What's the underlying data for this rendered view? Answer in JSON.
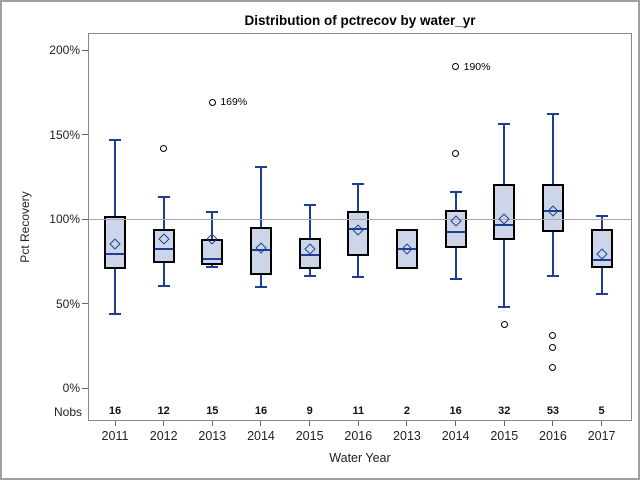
{
  "chart_data": {
    "type": "box",
    "title": "Distribution of pctrecov by water_yr",
    "xlabel": "Water Year",
    "ylabel": "Pct Recovery",
    "nobs_label": "Nobs",
    "ylim_pct": [
      0,
      200
    ],
    "yticks": [
      {
        "value": 0,
        "label": "0%"
      },
      {
        "value": 50,
        "label": "50%"
      },
      {
        "value": 100,
        "label": "100%"
      },
      {
        "value": 150,
        "label": "150%"
      },
      {
        "value": 200,
        "label": "200%"
      }
    ],
    "reference_line_pct": 100,
    "legend": "none",
    "grid": "off",
    "groups": [
      {
        "year": "2011",
        "nobs": "16",
        "whisker_low": 44,
        "q1": 70.5,
        "median": 79,
        "q3": 102,
        "whisker_high": 147,
        "mean": 85,
        "outliers": []
      },
      {
        "year": "2012",
        "nobs": "12",
        "whisker_low": 60.5,
        "q1": 74,
        "median": 82,
        "q3": 94,
        "whisker_high": 113,
        "mean": 88,
        "outliers": [
          {
            "value": 142,
            "label": ""
          }
        ]
      },
      {
        "year": "2013",
        "nobs": "15",
        "whisker_low": 71.5,
        "q1": 73,
        "median": 76.5,
        "q3": 88,
        "whisker_high": 104,
        "mean": 88,
        "outliers": [
          {
            "value": 169,
            "label": "169%"
          }
        ]
      },
      {
        "year": "2014",
        "nobs": "16",
        "whisker_low": 60,
        "q1": 67,
        "median": 81.5,
        "q3": 95,
        "whisker_high": 131,
        "mean": 83,
        "outliers": []
      },
      {
        "year": "2015",
        "nobs": "9",
        "whisker_low": 66,
        "q1": 70.5,
        "median": 78.5,
        "q3": 88.5,
        "whisker_high": 108.5,
        "mean": 82,
        "outliers": []
      },
      {
        "year": "2016",
        "nobs": "11",
        "whisker_low": 65.5,
        "q1": 78,
        "median": 94,
        "q3": 104.5,
        "whisker_high": 121,
        "mean": 93.5,
        "outliers": []
      },
      {
        "year": "2013",
        "nobs": "2",
        "whisker_low": 70.5,
        "q1": 70.5,
        "median": 82.5,
        "q3": 94,
        "whisker_high": 94,
        "mean": 82.5,
        "outliers": []
      },
      {
        "year": "2014",
        "nobs": "16",
        "whisker_low": 64.5,
        "q1": 83,
        "median": 92.5,
        "q3": 105.5,
        "whisker_high": 116,
        "mean": 99,
        "outliers": [
          {
            "value": 190,
            "label": "190%"
          },
          {
            "value": 139,
            "label": ""
          }
        ]
      },
      {
        "year": "2015",
        "nobs": "32",
        "whisker_low": 48,
        "q1": 87.5,
        "median": 96.5,
        "q3": 121,
        "whisker_high": 156,
        "mean": 100,
        "outliers": [
          {
            "value": 37.5,
            "label": ""
          }
        ]
      },
      {
        "year": "2016",
        "nobs": "53",
        "whisker_low": 66,
        "q1": 92.5,
        "median": 105,
        "q3": 120.5,
        "whisker_high": 162,
        "mean": 104.5,
        "outliers": [
          {
            "value": 31,
            "label": ""
          },
          {
            "value": 24,
            "label": ""
          },
          {
            "value": 12,
            "label": ""
          }
        ]
      },
      {
        "year": "2017",
        "nobs": "5",
        "whisker_low": 55.5,
        "q1": 71,
        "median": 76,
        "q3": 94,
        "whisker_high": 101.5,
        "mean": 79.5,
        "outliers": []
      }
    ],
    "colors": {
      "box_fill": "#cdd6e8",
      "box_border": "#000000",
      "line_blue": "#1c3f94",
      "outlier": "#000000",
      "reference_line": "#aaaaaa",
      "plot_border": "#8a8a8a",
      "text": "#222222"
    }
  }
}
